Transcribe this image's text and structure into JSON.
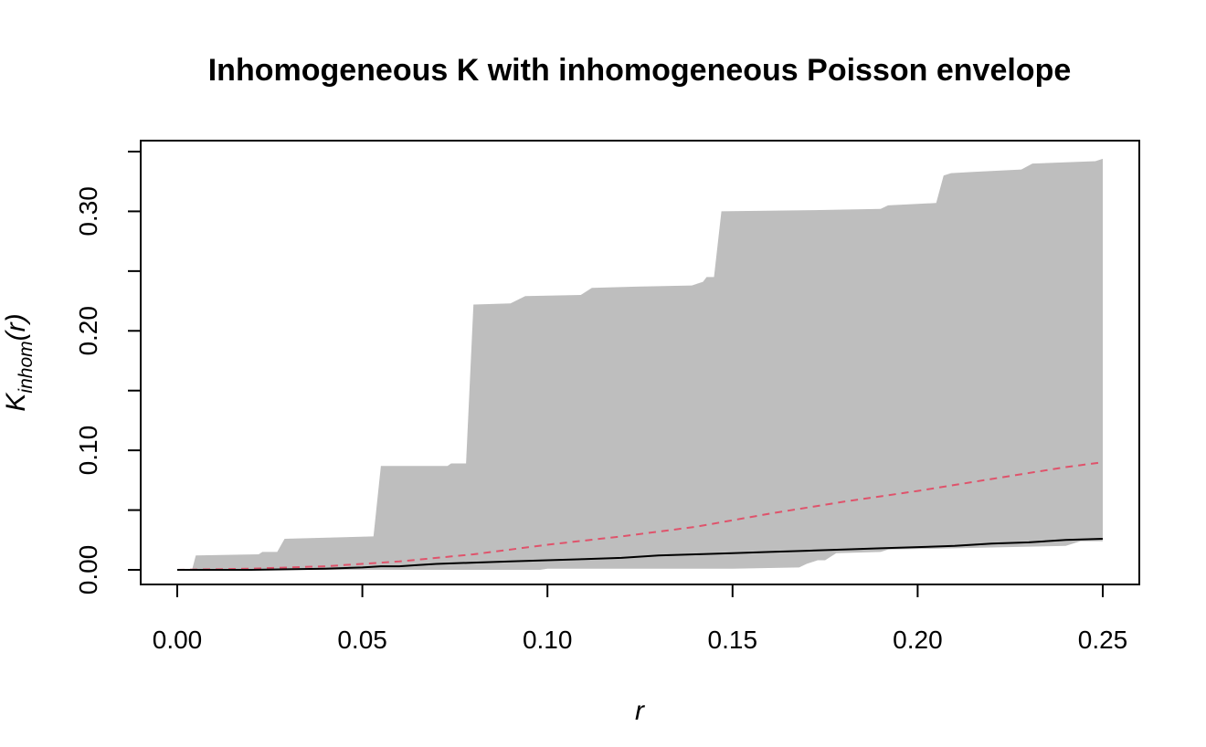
{
  "chart_data": {
    "type": "line",
    "title": "Inhomogeneous K with inhomogeneous Poisson envelope",
    "xlabel": "r",
    "ylabel": {
      "main": "K",
      "sub": "inhom",
      "arg": "(r)"
    },
    "xlim": [
      0,
      0.25
    ],
    "ylim": [
      0,
      0.35
    ],
    "x_ticks": [
      0.0,
      0.05,
      0.1,
      0.15,
      0.2,
      0.25
    ],
    "x_tick_labels": [
      "0.00",
      "0.05",
      "0.10",
      "0.15",
      "0.20",
      "0.25"
    ],
    "y_ticks": [
      0.0,
      0.05,
      0.1,
      0.15,
      0.2,
      0.25,
      0.3,
      0.35
    ],
    "y_tick_labels": [
      "0.00",
      "",
      "0.10",
      "",
      "0.20",
      "",
      "0.30",
      ""
    ],
    "grid": false,
    "colors": {
      "envelope": "#bebebe",
      "observed": "#000000",
      "theoretical": "#df536b"
    },
    "envelope": {
      "upper": [
        [
          0.0,
          0.0
        ],
        [
          0.004,
          0.0
        ],
        [
          0.005,
          0.012
        ],
        [
          0.022,
          0.013
        ],
        [
          0.023,
          0.015
        ],
        [
          0.027,
          0.015
        ],
        [
          0.029,
          0.026
        ],
        [
          0.053,
          0.028
        ],
        [
          0.055,
          0.087
        ],
        [
          0.073,
          0.087
        ],
        [
          0.074,
          0.089
        ],
        [
          0.078,
          0.089
        ],
        [
          0.08,
          0.222
        ],
        [
          0.09,
          0.223
        ],
        [
          0.094,
          0.229
        ],
        [
          0.109,
          0.23
        ],
        [
          0.112,
          0.236
        ],
        [
          0.124,
          0.237
        ],
        [
          0.139,
          0.238
        ],
        [
          0.142,
          0.241
        ],
        [
          0.143,
          0.245
        ],
        [
          0.145,
          0.245
        ],
        [
          0.147,
          0.3
        ],
        [
          0.172,
          0.301
        ],
        [
          0.19,
          0.302
        ],
        [
          0.192,
          0.305
        ],
        [
          0.205,
          0.307
        ],
        [
          0.207,
          0.33
        ],
        [
          0.209,
          0.332
        ],
        [
          0.215,
          0.333
        ],
        [
          0.228,
          0.335
        ],
        [
          0.231,
          0.34
        ],
        [
          0.248,
          0.342
        ],
        [
          0.25,
          0.344
        ]
      ],
      "lower": [
        [
          0.0,
          0.0
        ],
        [
          0.04,
          0.0
        ],
        [
          0.06,
          0.0
        ],
        [
          0.098,
          0.0
        ],
        [
          0.1,
          0.001
        ],
        [
          0.15,
          0.001
        ],
        [
          0.168,
          0.002
        ],
        [
          0.17,
          0.005
        ],
        [
          0.173,
          0.008
        ],
        [
          0.175,
          0.008
        ],
        [
          0.178,
          0.014
        ],
        [
          0.19,
          0.015
        ],
        [
          0.192,
          0.017
        ],
        [
          0.21,
          0.018
        ],
        [
          0.24,
          0.02
        ],
        [
          0.244,
          0.024
        ],
        [
          0.25,
          0.024
        ]
      ]
    },
    "series": [
      {
        "key": "observed",
        "style": "solid",
        "points": [
          [
            0.0,
            0.0
          ],
          [
            0.02,
            0.0
          ],
          [
            0.04,
            0.001
          ],
          [
            0.05,
            0.002
          ],
          [
            0.055,
            0.003
          ],
          [
            0.06,
            0.003
          ],
          [
            0.065,
            0.004
          ],
          [
            0.07,
            0.005
          ],
          [
            0.08,
            0.006
          ],
          [
            0.09,
            0.007
          ],
          [
            0.1,
            0.008
          ],
          [
            0.11,
            0.009
          ],
          [
            0.12,
            0.01
          ],
          [
            0.13,
            0.012
          ],
          [
            0.14,
            0.013
          ],
          [
            0.15,
            0.014
          ],
          [
            0.16,
            0.015
          ],
          [
            0.17,
            0.016
          ],
          [
            0.18,
            0.017
          ],
          [
            0.19,
            0.018
          ],
          [
            0.2,
            0.019
          ],
          [
            0.21,
            0.02
          ],
          [
            0.22,
            0.022
          ],
          [
            0.23,
            0.023
          ],
          [
            0.24,
            0.025
          ],
          [
            0.25,
            0.026
          ]
        ]
      },
      {
        "key": "theoretical",
        "style": "dashed",
        "points": [
          [
            0.0,
            0.0
          ],
          [
            0.02,
            0.001
          ],
          [
            0.04,
            0.003
          ],
          [
            0.06,
            0.007
          ],
          [
            0.08,
            0.013
          ],
          [
            0.1,
            0.021
          ],
          [
            0.12,
            0.028
          ],
          [
            0.14,
            0.036
          ],
          [
            0.16,
            0.047
          ],
          [
            0.18,
            0.057
          ],
          [
            0.2,
            0.066
          ],
          [
            0.22,
            0.076
          ],
          [
            0.24,
            0.086
          ],
          [
            0.25,
            0.09
          ]
        ]
      }
    ]
  }
}
